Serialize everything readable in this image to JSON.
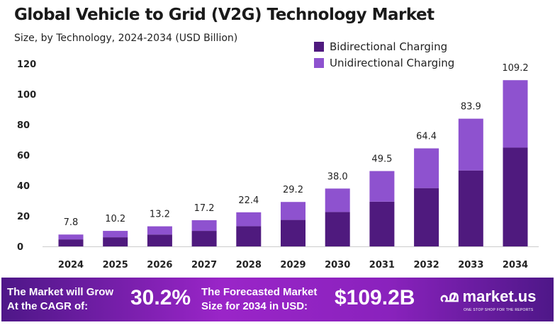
{
  "chart_data": {
    "type": "bar",
    "stacked": true,
    "title": "Global Vehicle to Grid (V2G) Technology Market",
    "subtitle": "Size, by Technology, 2024-2034 (USD Billion)",
    "categories": [
      "2024",
      "2025",
      "2026",
      "2027",
      "2028",
      "2029",
      "2030",
      "2031",
      "2032",
      "2033",
      "2034"
    ],
    "series": [
      {
        "name": "Bidirectional Charging",
        "color": "#4f1a7e",
        "values": [
          4.6,
          6.0,
          7.8,
          10.2,
          13.3,
          17.4,
          22.6,
          29.4,
          38.3,
          49.9,
          64.9
        ]
      },
      {
        "name": "Unidirectional Charging",
        "color": "#8e52cf",
        "values": [
          3.2,
          4.2,
          5.4,
          7.0,
          9.1,
          11.8,
          15.4,
          20.1,
          26.1,
          34.0,
          44.3
        ]
      }
    ],
    "totals": [
      "7.8",
      "10.2",
      "13.2",
      "17.2",
      "22.4",
      "29.2",
      "38.0",
      "49.5",
      "64.4",
      "83.9",
      "109.2"
    ],
    "yticks": [
      0,
      20,
      40,
      60,
      80,
      100,
      120
    ],
    "ylim": [
      0,
      120
    ],
    "grid": false,
    "legend": "top-right"
  },
  "banner": {
    "cagr_label_1": "The Market will Grow",
    "cagr_label_2": "At the CAGR of:",
    "cagr": "30.2%",
    "forecast_label_1": "The Forecasted Market",
    "forecast_label_2": "Size for 2034 in USD:",
    "forecast": "$109.2B",
    "logo": "market.us",
    "tagline": "ONE STOP SHOP FOR THE REPORTS"
  }
}
